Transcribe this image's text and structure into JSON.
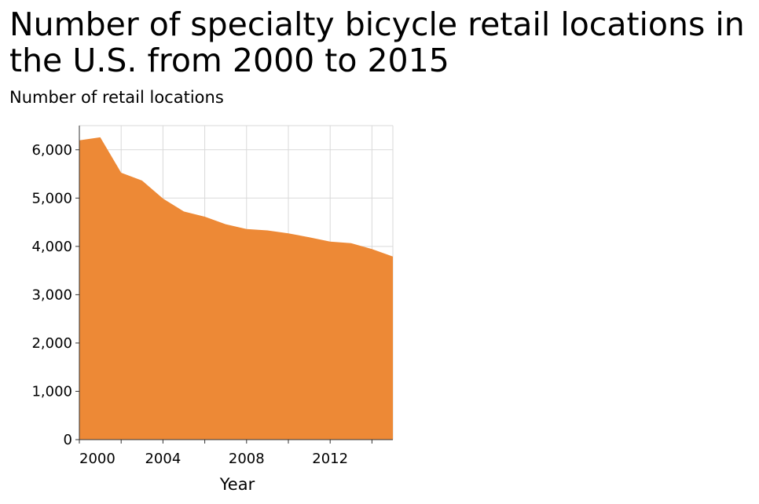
{
  "chart_data": {
    "type": "area",
    "title": "Number of specialty bicycle retail locations in the U.S. from 2000 to 2015",
    "ylabel": "Number of retail locations",
    "xlabel": "Year",
    "x": [
      2000,
      2001,
      2002,
      2003,
      2004,
      2005,
      2006,
      2007,
      2008,
      2009,
      2010,
      2011,
      2012,
      2013,
      2014,
      2015
    ],
    "series": [
      {
        "values": [
          6195,
          6259,
          5525,
          5362,
          4990,
          4722,
          4614,
          4458,
          4360,
          4330,
          4270,
          4189,
          4099,
          4067,
          3944,
          3790
        ]
      }
    ],
    "xlim": [
      2000,
      2015
    ],
    "ylim": [
      0,
      6500
    ],
    "x_ticks": [
      2000,
      2004,
      2008,
      2012
    ],
    "x_tick_labels": [
      "2000",
      "2004",
      "2008",
      "2012"
    ],
    "y_ticks": [
      0,
      1000,
      2000,
      3000,
      4000,
      5000,
      6000
    ],
    "y_tick_labels": [
      "0",
      "1,000",
      "2,000",
      "3,000",
      "4,000",
      "5,000",
      "6,000"
    ],
    "grid": true,
    "color": "#ed8936"
  }
}
